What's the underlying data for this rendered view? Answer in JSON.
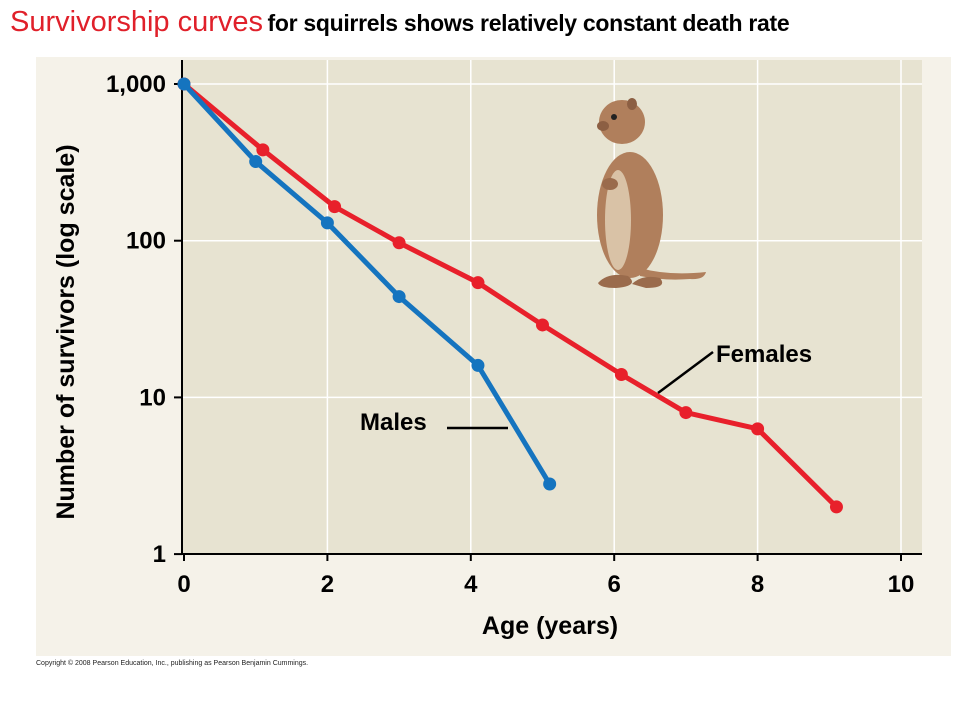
{
  "title": {
    "main": "Survivorship curves",
    "sub": "for squirrels shows relatively constant death rate"
  },
  "copyright": "Copyright © 2008 Pearson Education, Inc., publishing as Pearson Benjamin Cummings.",
  "colors": {
    "females": "#e8202b",
    "males": "#1574bf",
    "plot_bg": "#e7e3d1",
    "panel_bg": "#f5f2e9",
    "grid": "#ffffff",
    "squirrel": "#b07f5c"
  },
  "illustration": "squirrel-icon",
  "chart_data": {
    "type": "line",
    "xlabel": "Age (years)",
    "ylabel": "Number of survivors (log scale)",
    "xlim": [
      0,
      10.3
    ],
    "ylim": [
      1,
      1300
    ],
    "y_scale": "log",
    "grid": true,
    "x_ticks": [
      0,
      2,
      4,
      6,
      8,
      10
    ],
    "x_tick_labels": [
      "0",
      "2",
      "4",
      "6",
      "8",
      "10"
    ],
    "y_ticks": [
      1,
      10,
      100,
      1000
    ],
    "y_tick_labels": [
      "1",
      "10",
      "100",
      "1,000"
    ],
    "series": [
      {
        "name": "Females",
        "x": [
          0,
          1.1,
          2.1,
          3.0,
          4.1,
          5.0,
          6.1,
          7.0,
          8.0,
          9.1
        ],
        "y": [
          1000,
          380,
          165,
          97,
          54,
          29,
          14,
          8,
          6.3,
          2
        ]
      },
      {
        "name": "Males",
        "x": [
          0,
          1.0,
          2.0,
          3.0,
          4.1,
          5.1
        ],
        "y": [
          1000,
          320,
          130,
          44,
          16,
          2.8
        ]
      }
    ]
  }
}
